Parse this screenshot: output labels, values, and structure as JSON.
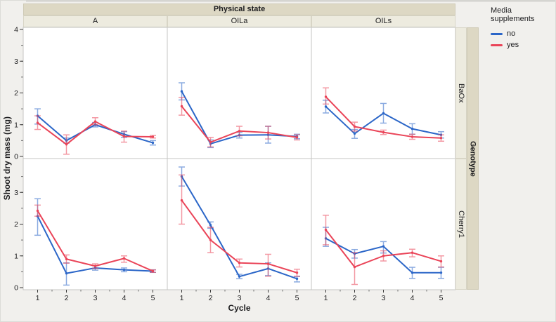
{
  "chart_data": {
    "type": "line",
    "facet_col_title": "Physical state",
    "facet_cols": [
      "A",
      "OILa",
      "OILs"
    ],
    "facet_row_title": "Genotype",
    "facet_rows": [
      "BaOx",
      "Cherry1"
    ],
    "xlabel": "Cycle",
    "ylabel": "Shoot dry mass (mg)",
    "x": [
      1,
      2,
      3,
      4,
      5
    ],
    "ylim": [
      0,
      4
    ],
    "yticks_top": [
      0,
      1,
      2,
      3,
      4
    ],
    "yticks_bottom": [
      0,
      1,
      2,
      3
    ],
    "grid": false,
    "error_bars": true,
    "legend": {
      "title": "Media supplements",
      "position": "top-right",
      "items": [
        {
          "label": "no",
          "color": "#2b66c8"
        },
        {
          "label": "yes",
          "color": "#ea4458"
        }
      ]
    },
    "panels": [
      {
        "row": "BaOx",
        "col": "A",
        "series": [
          {
            "name": "no",
            "values": [
              1.28,
              0.5,
              1.0,
              0.7,
              0.43
            ],
            "lo": [
              1.02,
              0.42,
              0.93,
              0.6,
              0.36
            ],
            "hi": [
              1.5,
              0.58,
              1.07,
              0.78,
              0.5
            ]
          },
          {
            "name": "yes",
            "values": [
              1.06,
              0.38,
              1.1,
              0.63,
              0.62
            ],
            "lo": [
              0.85,
              0.07,
              1.0,
              0.45,
              0.58
            ],
            "hi": [
              1.28,
              0.68,
              1.22,
              0.8,
              0.66
            ]
          }
        ]
      },
      {
        "row": "BaOx",
        "col": "OILa",
        "series": [
          {
            "name": "no",
            "values": [
              2.05,
              0.4,
              0.67,
              0.68,
              0.63
            ],
            "lo": [
              1.78,
              0.28,
              0.58,
              0.42,
              0.56
            ],
            "hi": [
              2.32,
              0.52,
              0.76,
              0.95,
              0.7
            ]
          },
          {
            "name": "yes",
            "values": [
              1.58,
              0.45,
              0.8,
              0.75,
              0.6
            ],
            "lo": [
              1.3,
              0.3,
              0.65,
              0.55,
              0.52
            ],
            "hi": [
              1.86,
              0.6,
              0.95,
              0.95,
              0.68
            ]
          }
        ]
      },
      {
        "row": "BaOx",
        "col": "OILs",
        "series": [
          {
            "name": "no",
            "values": [
              1.57,
              0.72,
              1.36,
              0.87,
              0.68
            ],
            "lo": [
              1.37,
              0.57,
              1.05,
              0.7,
              0.58
            ],
            "hi": [
              1.77,
              0.85,
              1.67,
              1.03,
              0.78
            ]
          },
          {
            "name": "yes",
            "values": [
              1.88,
              0.94,
              0.76,
              0.62,
              0.58
            ],
            "lo": [
              1.65,
              0.8,
              0.69,
              0.54,
              0.48
            ],
            "hi": [
              2.16,
              1.08,
              0.83,
              0.7,
              0.68
            ]
          }
        ]
      },
      {
        "row": "Cherry1",
        "col": "A",
        "series": [
          {
            "name": "no",
            "values": [
              2.25,
              0.45,
              0.62,
              0.56,
              0.52
            ],
            "lo": [
              1.65,
              0.08,
              0.55,
              0.5,
              0.48
            ],
            "hi": [
              2.8,
              0.78,
              0.69,
              0.62,
              0.56
            ]
          },
          {
            "name": "yes",
            "values": [
              2.42,
              0.9,
              0.68,
              0.92,
              0.52
            ],
            "lo": [
              2.25,
              0.77,
              0.61,
              0.8,
              0.48
            ],
            "hi": [
              2.6,
              1.03,
              0.75,
              1.0,
              0.56
            ]
          }
        ]
      },
      {
        "row": "Cherry1",
        "col": "OILa",
        "series": [
          {
            "name": "no",
            "values": [
              3.5,
              1.97,
              0.35,
              0.6,
              0.28
            ],
            "lo": [
              3.2,
              1.87,
              0.28,
              0.38,
              0.18
            ],
            "hi": [
              3.8,
              2.07,
              0.42,
              0.78,
              0.35
            ]
          },
          {
            "name": "yes",
            "values": [
              2.75,
              1.5,
              0.78,
              0.75,
              0.47
            ],
            "lo": [
              2.0,
              1.1,
              0.65,
              0.36,
              0.36
            ],
            "hi": [
              3.55,
              1.9,
              0.9,
              1.05,
              0.58
            ]
          }
        ]
      },
      {
        "row": "Cherry1",
        "col": "OILs",
        "series": [
          {
            "name": "no",
            "values": [
              1.55,
              1.07,
              1.3,
              0.47,
              0.47
            ],
            "lo": [
              1.3,
              0.93,
              1.09,
              0.29,
              0.29
            ],
            "hi": [
              1.9,
              1.2,
              1.45,
              0.64,
              0.64
            ]
          },
          {
            "name": "yes",
            "values": [
              1.82,
              0.65,
              1.0,
              1.1,
              0.83
            ],
            "lo": [
              1.35,
              0.1,
              0.84,
              0.97,
              0.65
            ],
            "hi": [
              2.28,
              1.1,
              1.16,
              1.21,
              1.0
            ]
          }
        ]
      }
    ],
    "style": {
      "panel_bg": "#ffffff",
      "panel_border": "#c5c5c3",
      "strip_bg_inner": "#edebdf",
      "strip_bg_outer": "#ddd8c4",
      "figure_bg": "#f1f0ed",
      "text_color": "#1d1d1f"
    }
  }
}
